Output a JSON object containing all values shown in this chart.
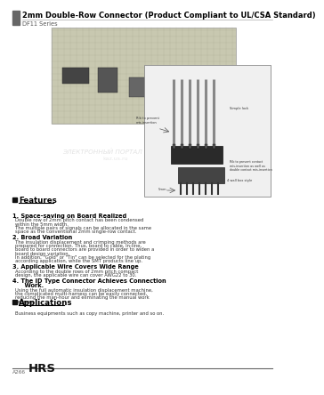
{
  "title": "2mm Double-Row Connector (Product Compliant to UL/CSA Standard)",
  "series": "DF11 Series",
  "background_color": "#ffffff",
  "features_title": "Features",
  "features": [
    {
      "num": "1.",
      "title": "Space-saving on Board Realized",
      "body": "Double row of 2mm pitch contact has been condensed\nwithin the 5mm width.\nThe multiple pairs of signals can be allocated in the same\nspace as the conventional 2mm single-row contact."
    },
    {
      "num": "2.",
      "title": "Broad Variation",
      "body": "The insulation displacement and crimping methods are\nprepared for connection. Thus, board to cable, In-line,\nboard to board connectors are provided in order to widen a\nboard design variation.\nIn addition, \"Gold\" or \"Tin\" can be selected for the plating\naccording application, while the SMT products line up."
    },
    {
      "num": "3.",
      "title": "Applicable Wire Covers Wide Range",
      "body": "According to the double rows of 2mm pitch compact\ndesign, the applicable wire can cover AWG22 to 30."
    },
    {
      "num": "4.",
      "title": "The ID Type Connector Achieves Connection",
      "title2": "Work.",
      "body": "Using the full automatic insulation displacement machine,\nthe complicated multi-harness can be easily connected,\nreducing the man-hour and eliminating the manual work\nprocess."
    }
  ],
  "applications_title": "Applications",
  "applications_body": "Business equipments such as copy machine, printer and so on.",
  "footer_code": "A266",
  "footer_brand": "HRS",
  "label_rib1": "Rib to prevent\nmis-insertion",
  "label_simple_lock": "Simple lock",
  "label_rib2": "Rib to prevent contact\nmis-insertion as well as\ndouble contact mis-insertion",
  "label_5mm": "5mm",
  "label_box": "4 wall box style",
  "watermark1": "ЭЛЕКТРОННЫЙ ПОРТАЛ",
  "watermark2": "kaz.us.ru"
}
